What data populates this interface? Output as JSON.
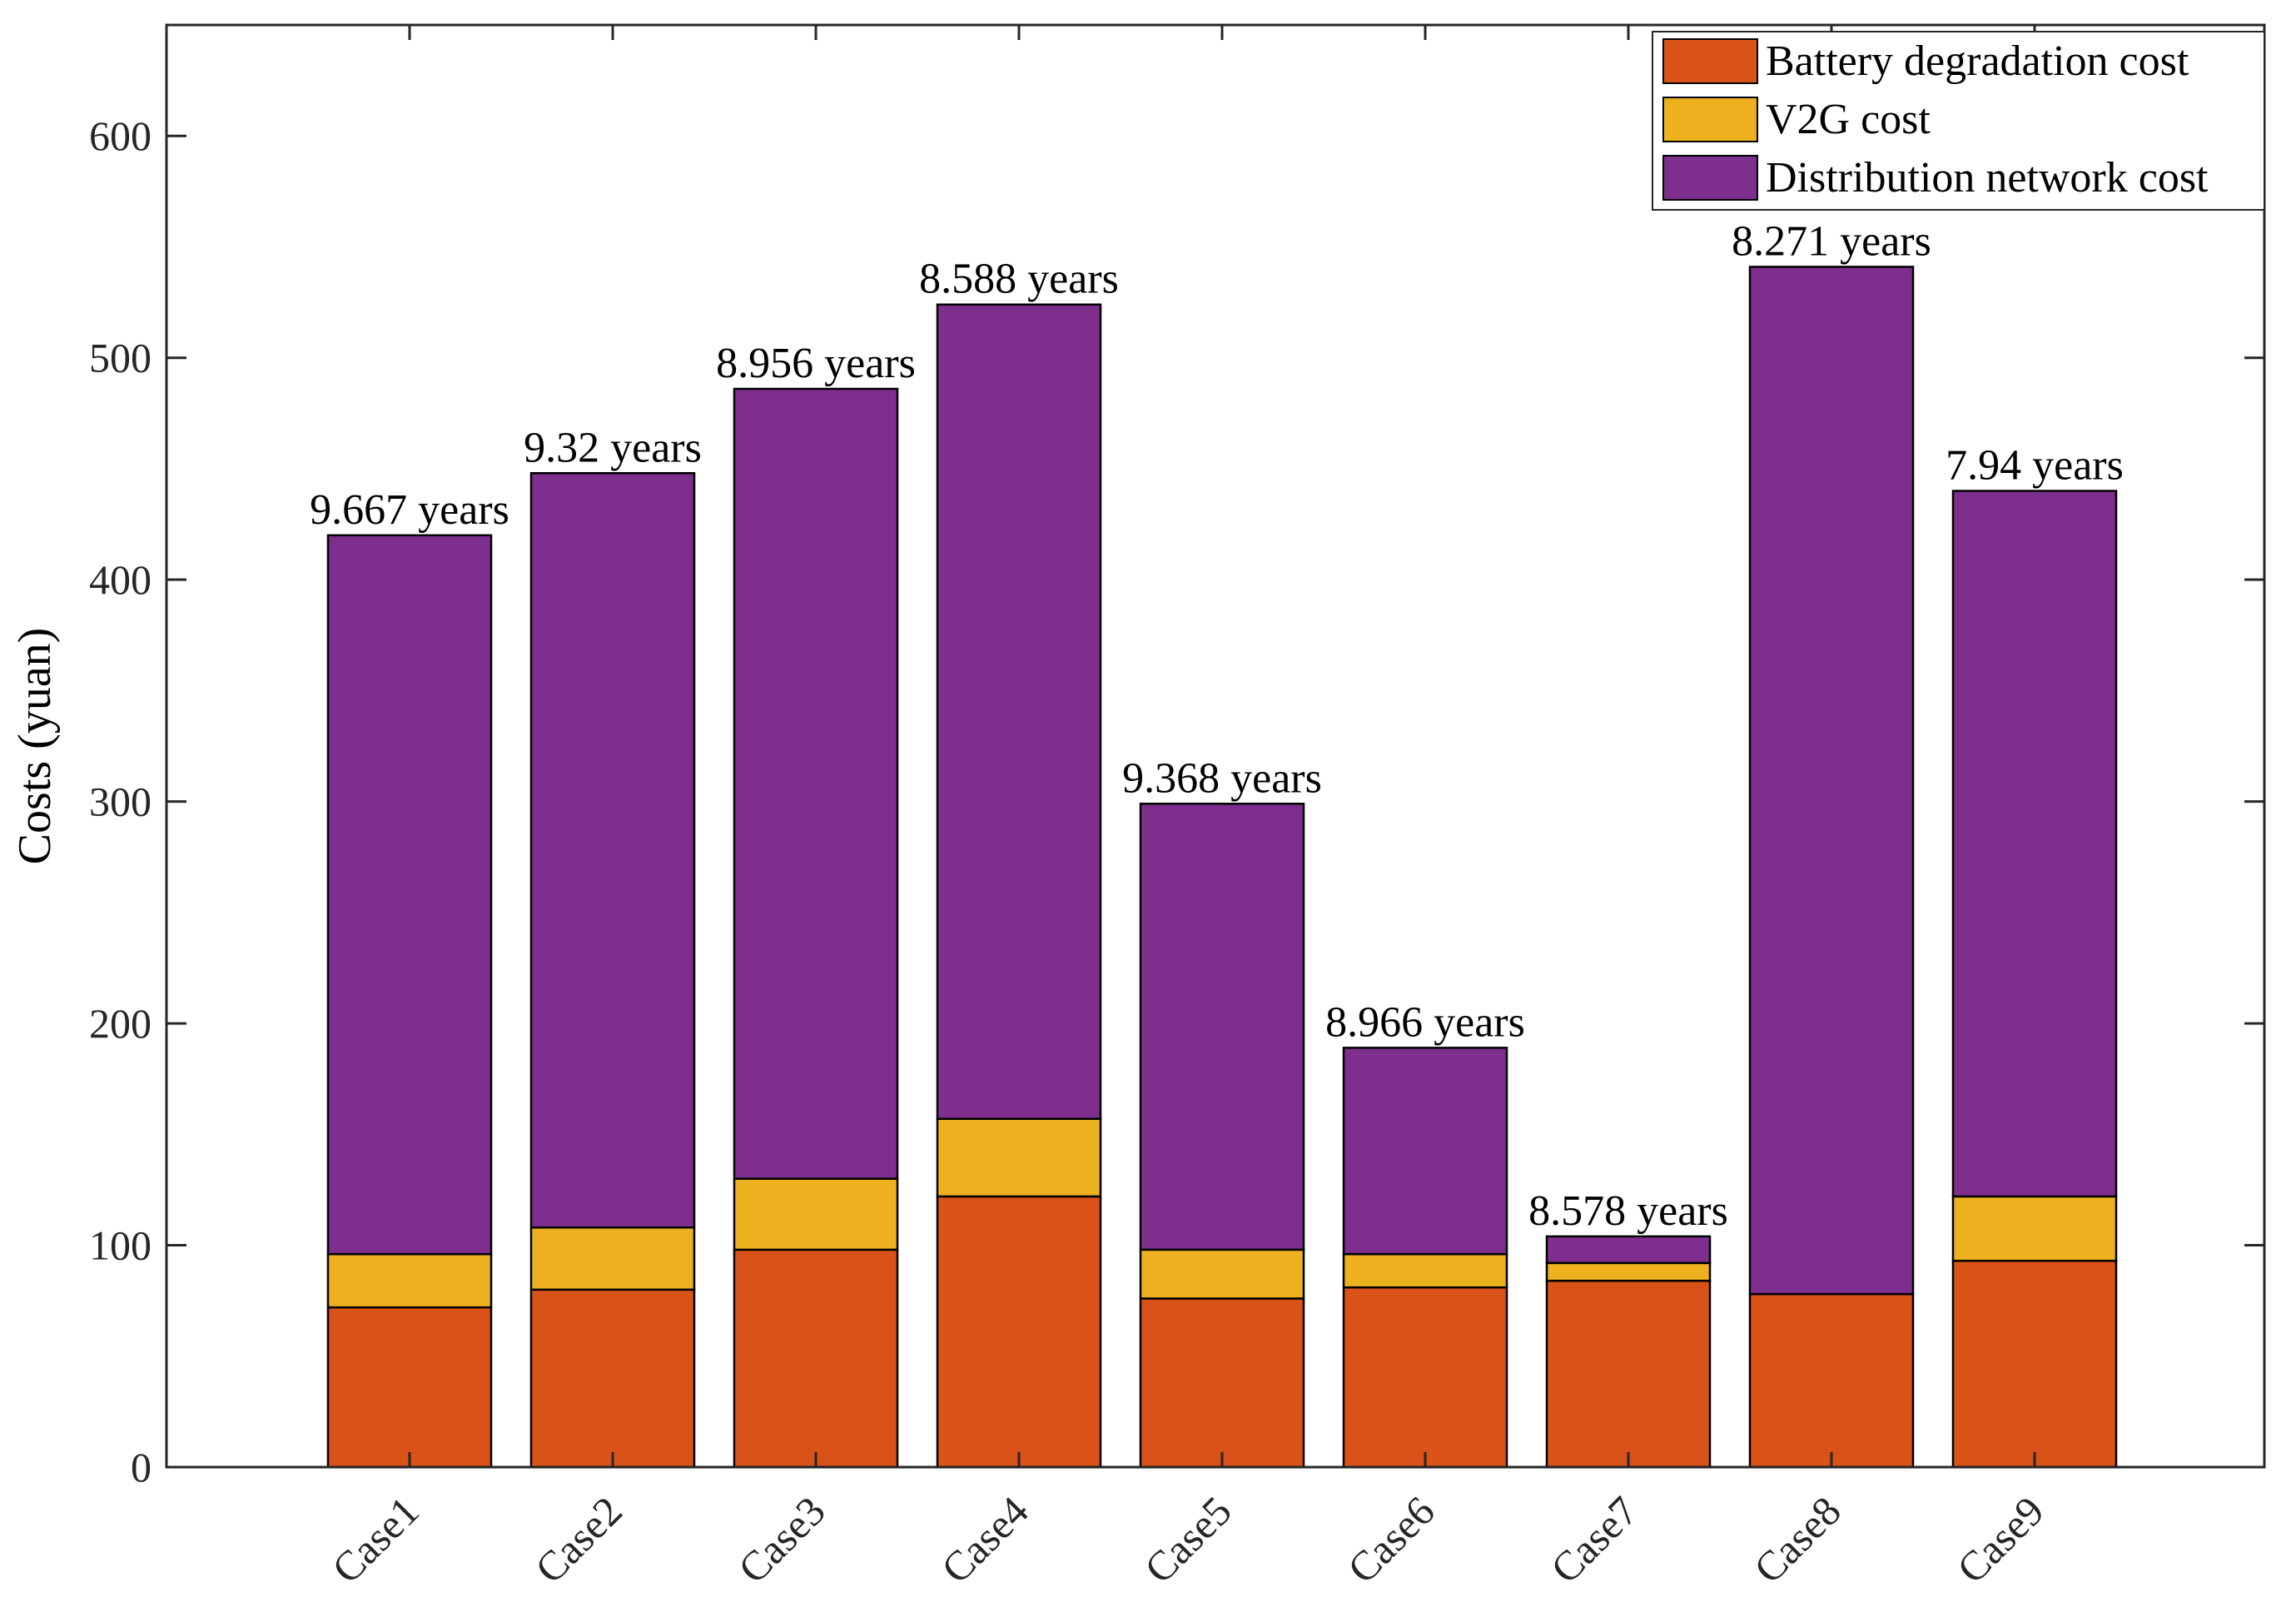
{
  "chart_data": {
    "type": "bar",
    "stacked": true,
    "categories": [
      "Case1",
      "Case2",
      "Case3",
      "Case4",
      "Case5",
      "Case6",
      "Case7",
      "Case8",
      "Case9"
    ],
    "series": [
      {
        "name": "Battery degradation cost",
        "color": "#D95319",
        "values": [
          72,
          80,
          98,
          122,
          76,
          81,
          84,
          78,
          93
        ]
      },
      {
        "name": "V2G cost",
        "color": "#EDB120",
        "values": [
          24,
          28,
          32,
          35,
          22,
          15,
          8,
          0,
          29
        ]
      },
      {
        "name": "Distribution network cost",
        "color": "#7E2F8E",
        "values": [
          324,
          340,
          356,
          367,
          201,
          93,
          12,
          463,
          318
        ]
      }
    ],
    "annotations": [
      "9.667 years",
      "9.32 years",
      "8.956 years",
      "8.588 years",
      "9.368 years",
      "8.966 years",
      "8.578 years",
      "8.271 years",
      "7.94 years"
    ],
    "xlabel": "",
    "ylabel": "Costs (yuan)",
    "ylim": [
      0,
      650
    ],
    "yticks": [
      "0",
      "100",
      "200",
      "300",
      "400",
      "500",
      "600"
    ],
    "grid": false,
    "legend_position": "top-right"
  }
}
